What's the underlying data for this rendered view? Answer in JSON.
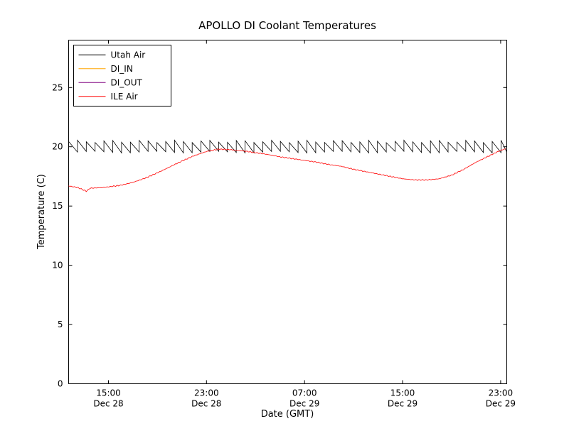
{
  "figure": {
    "title": "APOLLO DI Coolant Temperatures",
    "xlabel": "Date (GMT)",
    "ylabel": "Temperature (C)"
  },
  "chart_data": {
    "type": "line",
    "title": "APOLLO DI Coolant Temperatures",
    "xlabel": "Date (GMT)",
    "ylabel": "Temperature (C)",
    "x_unit": "hours since Dec 28 00:00 GMT",
    "xlim_hours": [
      11.75,
      47.5
    ],
    "ylim": [
      0,
      29
    ],
    "grid": false,
    "legend_position": "upper left",
    "yticks": [
      0,
      5,
      10,
      15,
      20,
      25
    ],
    "xticks": [
      {
        "t": 15,
        "time": "15:00",
        "date": "Dec 28"
      },
      {
        "t": 23,
        "time": "23:00",
        "date": "Dec 28"
      },
      {
        "t": 31,
        "time": "07:00",
        "date": "Dec 29"
      },
      {
        "t": 39,
        "time": "15:00",
        "date": "Dec 29"
      },
      {
        "t": 47,
        "time": "23:00",
        "date": "Dec 29"
      }
    ],
    "series": [
      {
        "name": "Utah Air",
        "color": "#000000",
        "style": "sawtooth",
        "sawtooth": {
          "t_start": 11.75,
          "t_end": 47.5,
          "period": 0.72,
          "peak": 20.45,
          "trough": 19.55
        }
      },
      {
        "name": "DI_IN",
        "color": "#ffa500",
        "x": [],
        "values": []
      },
      {
        "name": "DI_OUT",
        "color": "#800080",
        "x": [],
        "values": []
      },
      {
        "name": "ILE Air",
        "color": "#ff0000",
        "x": [
          11.75,
          12.5,
          13.2,
          13.5,
          14.5,
          16,
          17,
          18,
          19,
          20,
          21,
          22,
          23,
          24,
          25,
          26,
          27,
          28,
          29,
          30,
          31,
          32,
          33,
          34,
          35,
          36,
          37,
          38,
          39,
          40,
          41,
          42,
          43,
          44,
          45,
          46,
          47,
          47.5
        ],
        "values": [
          16.7,
          16.55,
          16.25,
          16.5,
          16.55,
          16.75,
          17.0,
          17.35,
          17.8,
          18.3,
          18.8,
          19.25,
          19.6,
          19.8,
          19.75,
          19.65,
          19.5,
          19.35,
          19.15,
          19.0,
          18.85,
          18.7,
          18.5,
          18.35,
          18.1,
          17.9,
          17.7,
          17.5,
          17.3,
          17.2,
          17.2,
          17.3,
          17.6,
          18.1,
          18.7,
          19.2,
          19.7,
          19.85
        ]
      }
    ]
  }
}
